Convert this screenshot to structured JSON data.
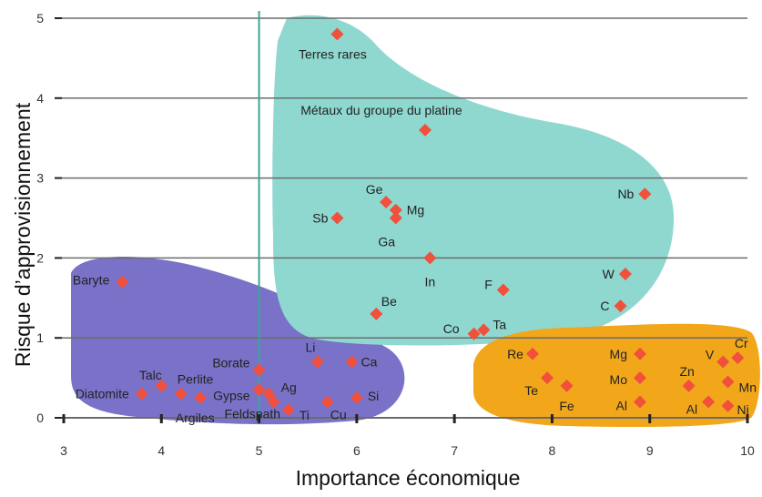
{
  "chart_data": {
    "type": "scatter",
    "title": "",
    "xlabel": "Importance économique",
    "ylabel": "Risque d’approvisionnement",
    "xlim": [
      3,
      10
    ],
    "ylim": [
      0,
      5
    ],
    "x_ticks": [
      "3",
      "4",
      "5",
      "6",
      "7",
      "8",
      "9",
      "10"
    ],
    "y_ticks": [
      "0",
      "1",
      "2",
      "3",
      "4",
      "5"
    ],
    "grid": "horizontal",
    "vertical_reference_x": 5,
    "colors": {
      "marker": "#f0503c",
      "blue_region": "#7a72c8",
      "teal_region": "#8fd8d0",
      "orange_region": "#f2a71b",
      "grid": "#6b6b6b",
      "vline": "#3aa69a"
    },
    "groups": [
      {
        "region": "blue",
        "points": [
          {
            "label": "Baryte",
            "x": 3.6,
            "y": 1.7
          },
          {
            "label": "Diatomite",
            "x": 3.8,
            "y": 0.3
          },
          {
            "label": "Talc",
            "x": 4.0,
            "y": 0.4
          },
          {
            "label": "Perlite",
            "x": 4.2,
            "y": 0.3
          },
          {
            "label": "Argiles",
            "x": 4.4,
            "y": 0.25
          },
          {
            "label": "Borate",
            "x": 5.0,
            "y": 0.6
          },
          {
            "label": "Gypse",
            "x": 5.0,
            "y": 0.35
          },
          {
            "label": "Feldspath",
            "x": 5.1,
            "y": 0.3
          },
          {
            "label": "Ag",
            "x": 5.15,
            "y": 0.2
          },
          {
            "label": "Ti",
            "x": 5.3,
            "y": 0.1
          },
          {
            "label": "Li",
            "x": 5.6,
            "y": 0.7
          },
          {
            "label": "Cu",
            "x": 5.7,
            "y": 0.2
          },
          {
            "label": "Ca",
            "x": 5.95,
            "y": 0.7
          },
          {
            "label": "Si",
            "x": 6.0,
            "y": 0.25
          }
        ]
      },
      {
        "region": "teal",
        "points": [
          {
            "label": "Terres rares",
            "x": 5.8,
            "y": 4.8
          },
          {
            "label": "Métaux du groupe du platine",
            "x": 6.7,
            "y": 3.6
          },
          {
            "label": "Ge",
            "x": 6.3,
            "y": 2.7
          },
          {
            "label": "Mg",
            "x": 6.4,
            "y": 2.6
          },
          {
            "label": "Ga",
            "x": 6.4,
            "y": 2.5
          },
          {
            "label": "Sb",
            "x": 5.8,
            "y": 2.5
          },
          {
            "label": "In",
            "x": 6.75,
            "y": 2.0
          },
          {
            "label": "Nb",
            "x": 8.95,
            "y": 2.8
          },
          {
            "label": "W",
            "x": 8.75,
            "y": 1.8
          },
          {
            "label": "C",
            "x": 8.7,
            "y": 1.4
          },
          {
            "label": "F",
            "x": 7.5,
            "y": 1.6
          },
          {
            "label": "Be",
            "x": 6.2,
            "y": 1.3
          },
          {
            "label": "Co",
            "x": 7.2,
            "y": 1.05
          },
          {
            "label": "Ta",
            "x": 7.3,
            "y": 1.1
          }
        ]
      },
      {
        "region": "orange",
        "points": [
          {
            "label": "Re",
            "x": 7.8,
            "y": 0.8
          },
          {
            "label": "Te",
            "x": 7.95,
            "y": 0.5
          },
          {
            "label": "Fe",
            "x": 8.15,
            "y": 0.4
          },
          {
            "label": "Mg",
            "x": 8.9,
            "y": 0.8
          },
          {
            "label": "Mo",
            "x": 8.9,
            "y": 0.5
          },
          {
            "label": "Al",
            "x": 8.9,
            "y": 0.2
          },
          {
            "label": "Zn",
            "x": 9.4,
            "y": 0.4
          },
          {
            "label": "Al",
            "x": 9.6,
            "y": 0.2
          },
          {
            "label": "V",
            "x": 9.75,
            "y": 0.7
          },
          {
            "label": "Cr",
            "x": 9.9,
            "y": 0.75
          },
          {
            "label": "Mn",
            "x": 9.8,
            "y": 0.45
          },
          {
            "label": "Ni",
            "x": 9.8,
            "y": 0.15
          }
        ]
      }
    ]
  }
}
